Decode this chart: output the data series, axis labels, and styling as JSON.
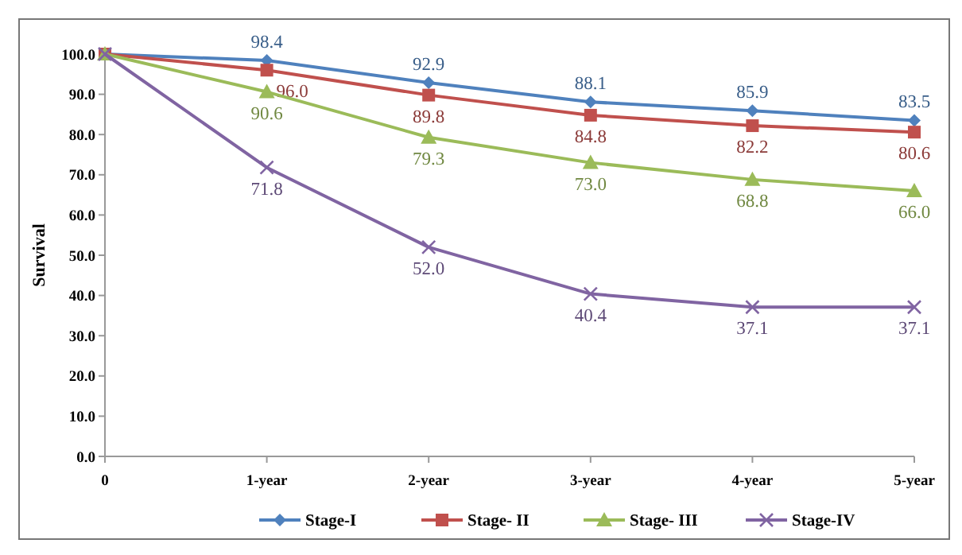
{
  "chart_data": {
    "type": "line",
    "ylabel": "Survival",
    "categories": [
      "0",
      "1-year",
      "2-year",
      "3-year",
      "4-year",
      "5-year"
    ],
    "ylim": [
      0,
      100
    ],
    "yticks": [
      {
        "value": 0,
        "label": "0.0"
      },
      {
        "value": 10,
        "label": "10.0"
      },
      {
        "value": 20,
        "label": "20.0"
      },
      {
        "value": 30,
        "label": "30.0"
      },
      {
        "value": 40,
        "label": "40.0"
      },
      {
        "value": 50,
        "label": "50.0"
      },
      {
        "value": 60,
        "label": "60.0"
      },
      {
        "value": 70,
        "label": "70.0"
      },
      {
        "value": 80,
        "label": "80.0"
      },
      {
        "value": 90,
        "label": "90.0"
      },
      {
        "value": 100,
        "label": "100.0"
      }
    ],
    "grid": false,
    "legend": "bottom",
    "line_style": "solid",
    "series": [
      {
        "name": "Stage-I",
        "color": "#4f81bd",
        "marker": "diamond",
        "values": [
          100,
          98.4,
          92.9,
          88.1,
          85.9,
          83.5
        ],
        "value_labels": [
          null,
          "98.4",
          "92.9",
          "88.1",
          "85.9",
          "83.5"
        ]
      },
      {
        "name": "Stage- II",
        "color": "#c0504d",
        "marker": "square",
        "values": [
          100,
          96.0,
          89.8,
          84.8,
          82.2,
          80.6
        ],
        "value_labels": [
          null,
          "96.0",
          "89.8",
          "84.8",
          "82.2",
          "80.6"
        ]
      },
      {
        "name": "Stage- III",
        "color": "#9bbb59",
        "marker": "triangle",
        "values": [
          100,
          90.6,
          79.3,
          73.0,
          68.8,
          66.0
        ],
        "value_labels": [
          null,
          "90.6",
          "79.3",
          "73.0",
          "68.8",
          "66.0"
        ]
      },
      {
        "name": "Stage-IV",
        "color": "#8064a2",
        "marker": "cross",
        "values": [
          100,
          71.8,
          52.0,
          40.4,
          37.1,
          37.1
        ],
        "value_labels": [
          null,
          "71.8",
          "52.0",
          "40.4",
          "37.1",
          "37.1"
        ]
      }
    ]
  }
}
